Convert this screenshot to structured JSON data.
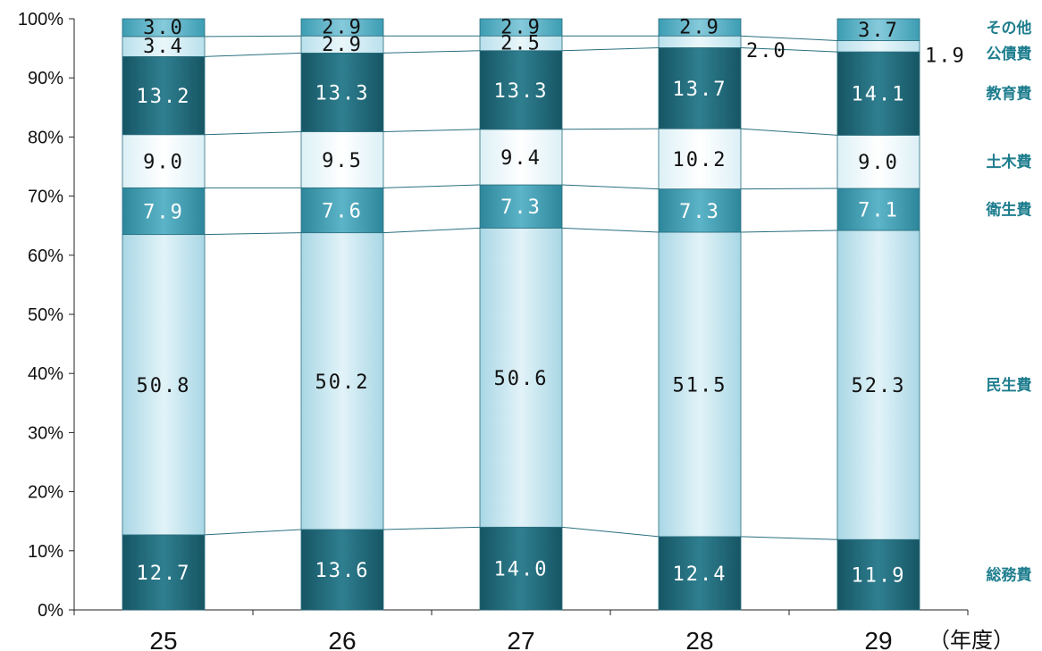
{
  "chart_data": {
    "type": "bar",
    "stacked": true,
    "percent": true,
    "categories": [
      "25",
      "26",
      "27",
      "28",
      "29"
    ],
    "x_unit_label": "（年度）",
    "ylim": [
      0,
      100
    ],
    "y_ticks": [
      "0%",
      "10%",
      "20%",
      "30%",
      "40%",
      "50%",
      "60%",
      "70%",
      "80%",
      "90%",
      "100%"
    ],
    "grid": false,
    "legend": "right",
    "series": [
      {
        "name": "総務費",
        "values": [
          12.7,
          13.6,
          14.0,
          12.4,
          11.9
        ],
        "labels": [
          "12.7",
          "13.6",
          "14.0",
          "12.4",
          "11.9"
        ],
        "color": "#2c7585"
      },
      {
        "name": "民生費",
        "values": [
          50.8,
          50.2,
          50.6,
          51.5,
          52.3
        ],
        "labels": [
          "50.8",
          "50.2",
          "50.6",
          "51.5",
          "52.3"
        ],
        "color": "#bfe3ee"
      },
      {
        "name": "衛生費",
        "values": [
          7.9,
          7.6,
          7.3,
          7.3,
          7.1
        ],
        "labels": [
          "7.9",
          "7.6",
          "7.3",
          "7.3",
          "7.1"
        ],
        "color": "#3f9ab0"
      },
      {
        "name": "土木費",
        "values": [
          9.0,
          9.5,
          9.4,
          10.2,
          9.0
        ],
        "labels": [
          "9.0",
          "9.5",
          "9.4",
          "10.2",
          "9.0"
        ],
        "color": "#eef8fb"
      },
      {
        "name": "教育費",
        "values": [
          13.2,
          13.3,
          13.3,
          13.7,
          14.1
        ],
        "labels": [
          "13.2",
          "13.3",
          "13.3",
          "13.7",
          "14.1"
        ],
        "color": "#1f5f6e"
      },
      {
        "name": "公債費",
        "values": [
          3.4,
          2.9,
          2.5,
          2.0,
          1.9
        ],
        "labels": [
          "3.4",
          "2.9",
          "2.5",
          "2.0",
          "1.9"
        ],
        "color": "#cfeaf2"
      },
      {
        "name": "その他",
        "values": [
          3.0,
          2.9,
          2.9,
          2.9,
          3.7
        ],
        "labels": [
          "3.0",
          "2.9",
          "2.9",
          "2.9",
          "3.7"
        ],
        "color": "#5bb3c7"
      }
    ],
    "legend_color": "#1f7e8e"
  }
}
